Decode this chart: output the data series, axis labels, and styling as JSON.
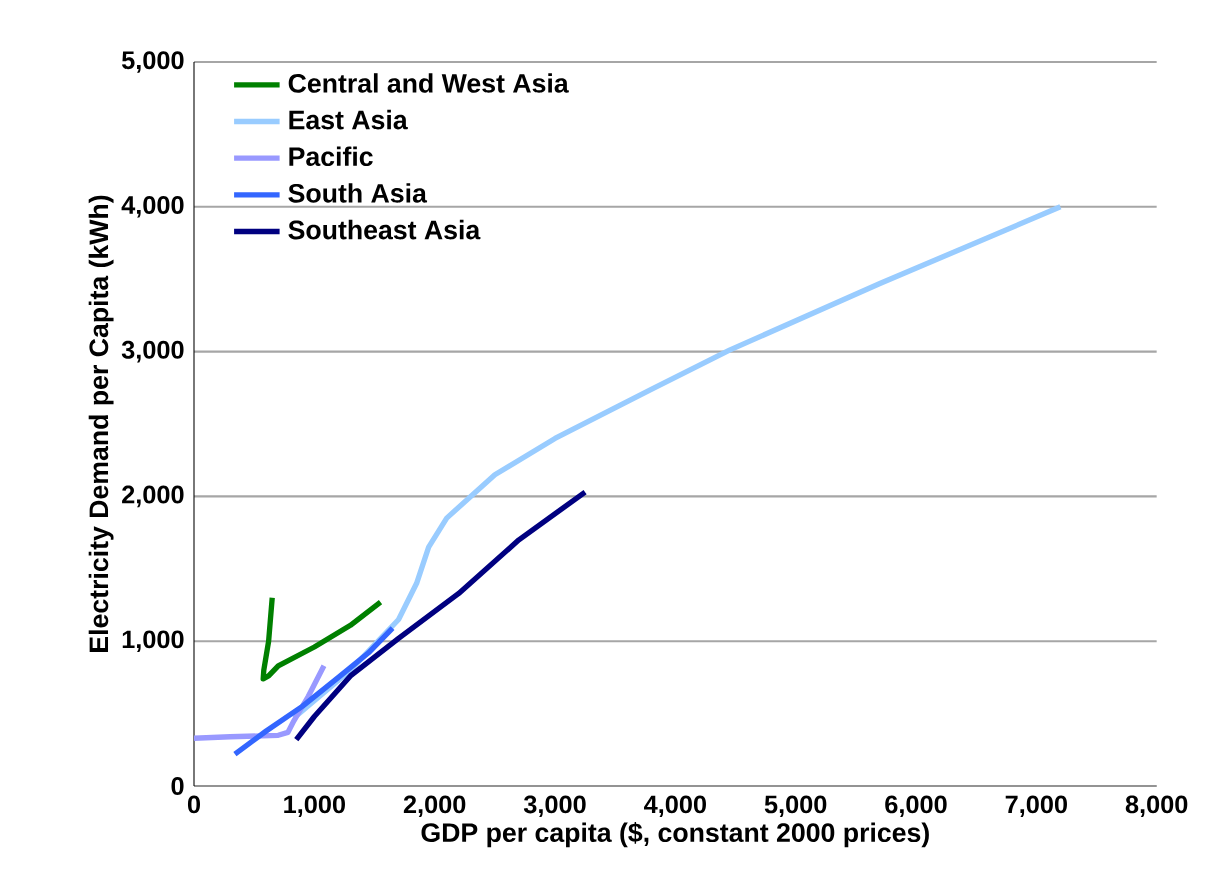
{
  "chart_data": {
    "type": "line",
    "xlabel": "GDP per capita ($, constant 2000 prices)",
    "ylabel": "Electricity Demand per Capita (kWh)",
    "xlim": [
      0,
      8000
    ],
    "ylim": [
      0,
      5000
    ],
    "xticks": [
      {
        "value": 0,
        "label": "0"
      },
      {
        "value": 1000,
        "label": "1,000"
      },
      {
        "value": 2000,
        "label": "2,000"
      },
      {
        "value": 3000,
        "label": "3,000"
      },
      {
        "value": 4000,
        "label": "4,000"
      },
      {
        "value": 5000,
        "label": "5,000"
      },
      {
        "value": 6000,
        "label": "6,000"
      },
      {
        "value": 7000,
        "label": "7,000"
      },
      {
        "value": 8000,
        "label": "8,000"
      }
    ],
    "yticks": [
      {
        "value": 0,
        "label": "0"
      },
      {
        "value": 1000,
        "label": "1,000"
      },
      {
        "value": 2000,
        "label": "2,000"
      },
      {
        "value": 3000,
        "label": "3,000"
      },
      {
        "value": 4000,
        "label": "4,000"
      },
      {
        "value": 5000,
        "label": "5,000"
      }
    ],
    "grid": "y",
    "legend": "top left",
    "marker": "none",
    "line_style": "solid",
    "series": [
      {
        "name": "Central and West Asia",
        "color": "#008000",
        "x": [
          650,
          620,
          580,
          575,
          620,
          700,
          1000,
          1300,
          1550
        ],
        "values": [
          1300,
          1000,
          800,
          740,
          760,
          830,
          960,
          1110,
          1270
        ]
      },
      {
        "name": "East Asia",
        "color": "#99ccff",
        "x": [
          830,
          1300,
          1700,
          1850,
          1950,
          2100,
          2500,
          3000,
          3800,
          4450,
          5700,
          7200
        ],
        "values": [
          470,
          800,
          1150,
          1400,
          1650,
          1850,
          2150,
          2400,
          2740,
          3010,
          3470,
          4000
        ]
      },
      {
        "name": "Pacific",
        "color": "#9999ff",
        "x": [
          0,
          300,
          700,
          780,
          830,
          950,
          1080
        ],
        "values": [
          330,
          340,
          350,
          370,
          450,
          620,
          830
        ]
      },
      {
        "name": "South Asia",
        "color": "#3366ff",
        "x": [
          340,
          600,
          900,
          1200,
          1450,
          1650
        ],
        "values": [
          220,
          380,
          550,
          750,
          920,
          1090
        ]
      },
      {
        "name": "Southeast Asia",
        "color": "#000080",
        "x": [
          850,
          1000,
          1300,
          1700,
          2200,
          2700,
          3250
        ],
        "values": [
          320,
          480,
          760,
          1020,
          1330,
          1700,
          2030
        ]
      }
    ]
  }
}
